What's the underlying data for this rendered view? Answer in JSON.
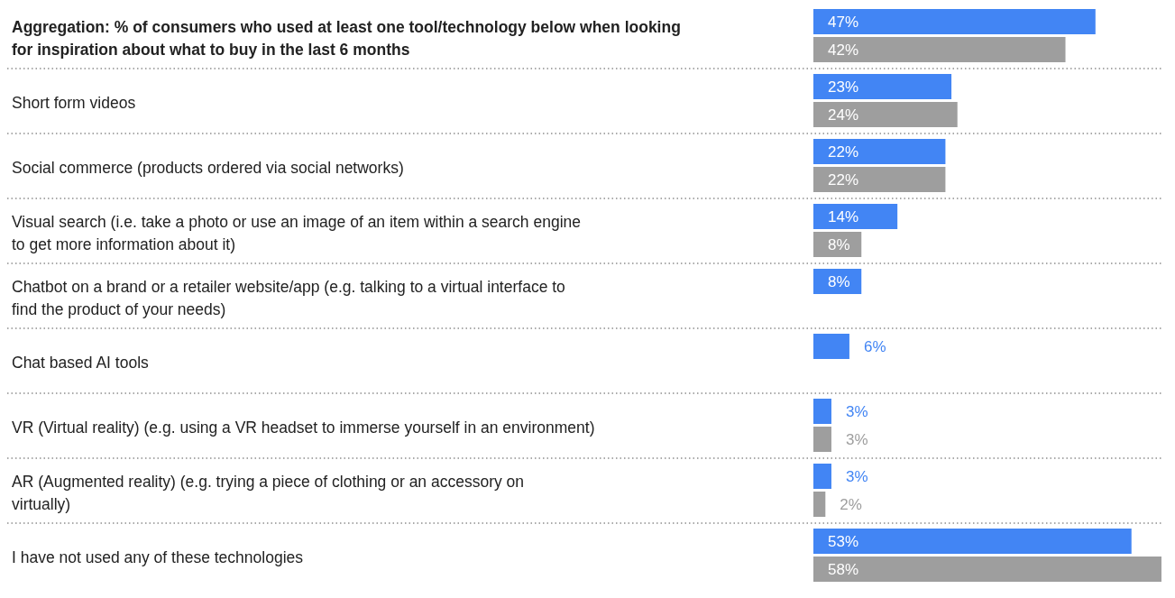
{
  "chart_data": {
    "type": "bar",
    "orientation": "horizontal",
    "categories": [
      "Aggregation: % of consumers who used at least one tool/technology below when looking for inspiration about what to buy in the last 6 months",
      "Short form videos",
      "Social commerce (products ordered via social networks)",
      "Visual search (i.e. take a photo or use an image of an item within a search engine to get more information about it)",
      "Chatbot on a brand or a retailer website/app (e.g. talking to a virtual interface to find the product of your needs)",
      "Chat based AI tools",
      "VR (Virtual reality) (e.g. using a VR headset to immerse yourself in an environment)",
      "AR (Augmented reality) (e.g. trying a piece of clothing or an accessory on virtually)",
      "I have not used any of these technologies"
    ],
    "series": [
      {
        "color": "#4285f4",
        "values": [
          47,
          23,
          22,
          14,
          8,
          6,
          3,
          3,
          53
        ],
        "value_labels": [
          "47%",
          "23%",
          "22%",
          "14%",
          "8%",
          "6%",
          "3%",
          "3%",
          "53%"
        ]
      },
      {
        "color": "#9e9e9e",
        "values": [
          42,
          24,
          22,
          8,
          null,
          null,
          3,
          2,
          58
        ],
        "value_labels": [
          "42%",
          "24%",
          "22%",
          "8%",
          null,
          null,
          "3%",
          "2%",
          "58%"
        ]
      }
    ]
  }
}
